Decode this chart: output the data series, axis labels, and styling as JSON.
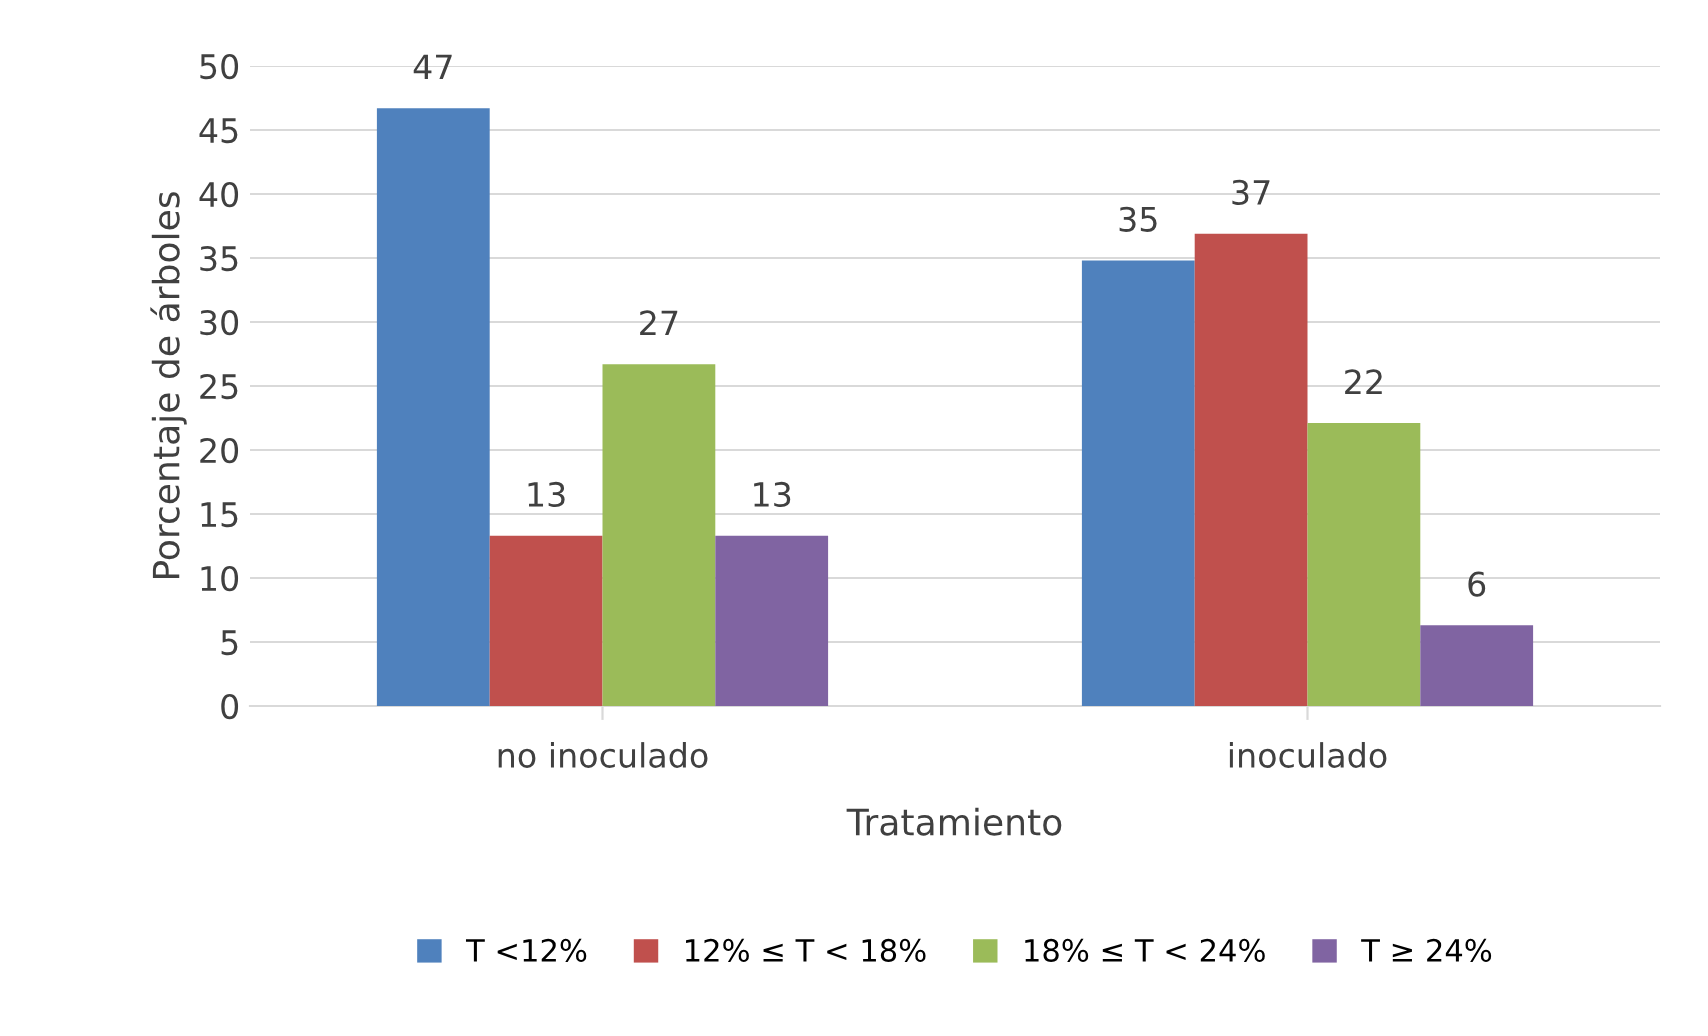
{
  "chart_data": {
    "type": "bar",
    "xlabel": "Tratamiento",
    "ylabel": "Porcentaje de árboles",
    "categories": [
      "no inoculado",
      "inoculado"
    ],
    "series": [
      {
        "name": "T <12%",
        "color": "#4f81bd",
        "values": [
          46.7,
          34.8
        ],
        "value_labels": [
          "47",
          "35"
        ]
      },
      {
        "name": "12% ≤ T < 18%",
        "color": "#c0504d",
        "values": [
          13.3,
          36.9
        ],
        "value_labels": [
          "13",
          "37"
        ]
      },
      {
        "name": "18% ≤ T < 24%",
        "color": "#9bbb59",
        "values": [
          26.7,
          22.1
        ],
        "value_labels": [
          "27",
          "22"
        ]
      },
      {
        "name": "T ≥ 24%",
        "color": "#8064a2",
        "values": [
          13.3,
          6.3
        ],
        "value_labels": [
          "13",
          "6"
        ]
      }
    ],
    "ylim": [
      0,
      50
    ],
    "yticks": [
      0,
      5,
      10,
      15,
      20,
      25,
      30,
      35,
      40,
      45,
      50
    ],
    "grid": "y",
    "legend": "bottom"
  }
}
